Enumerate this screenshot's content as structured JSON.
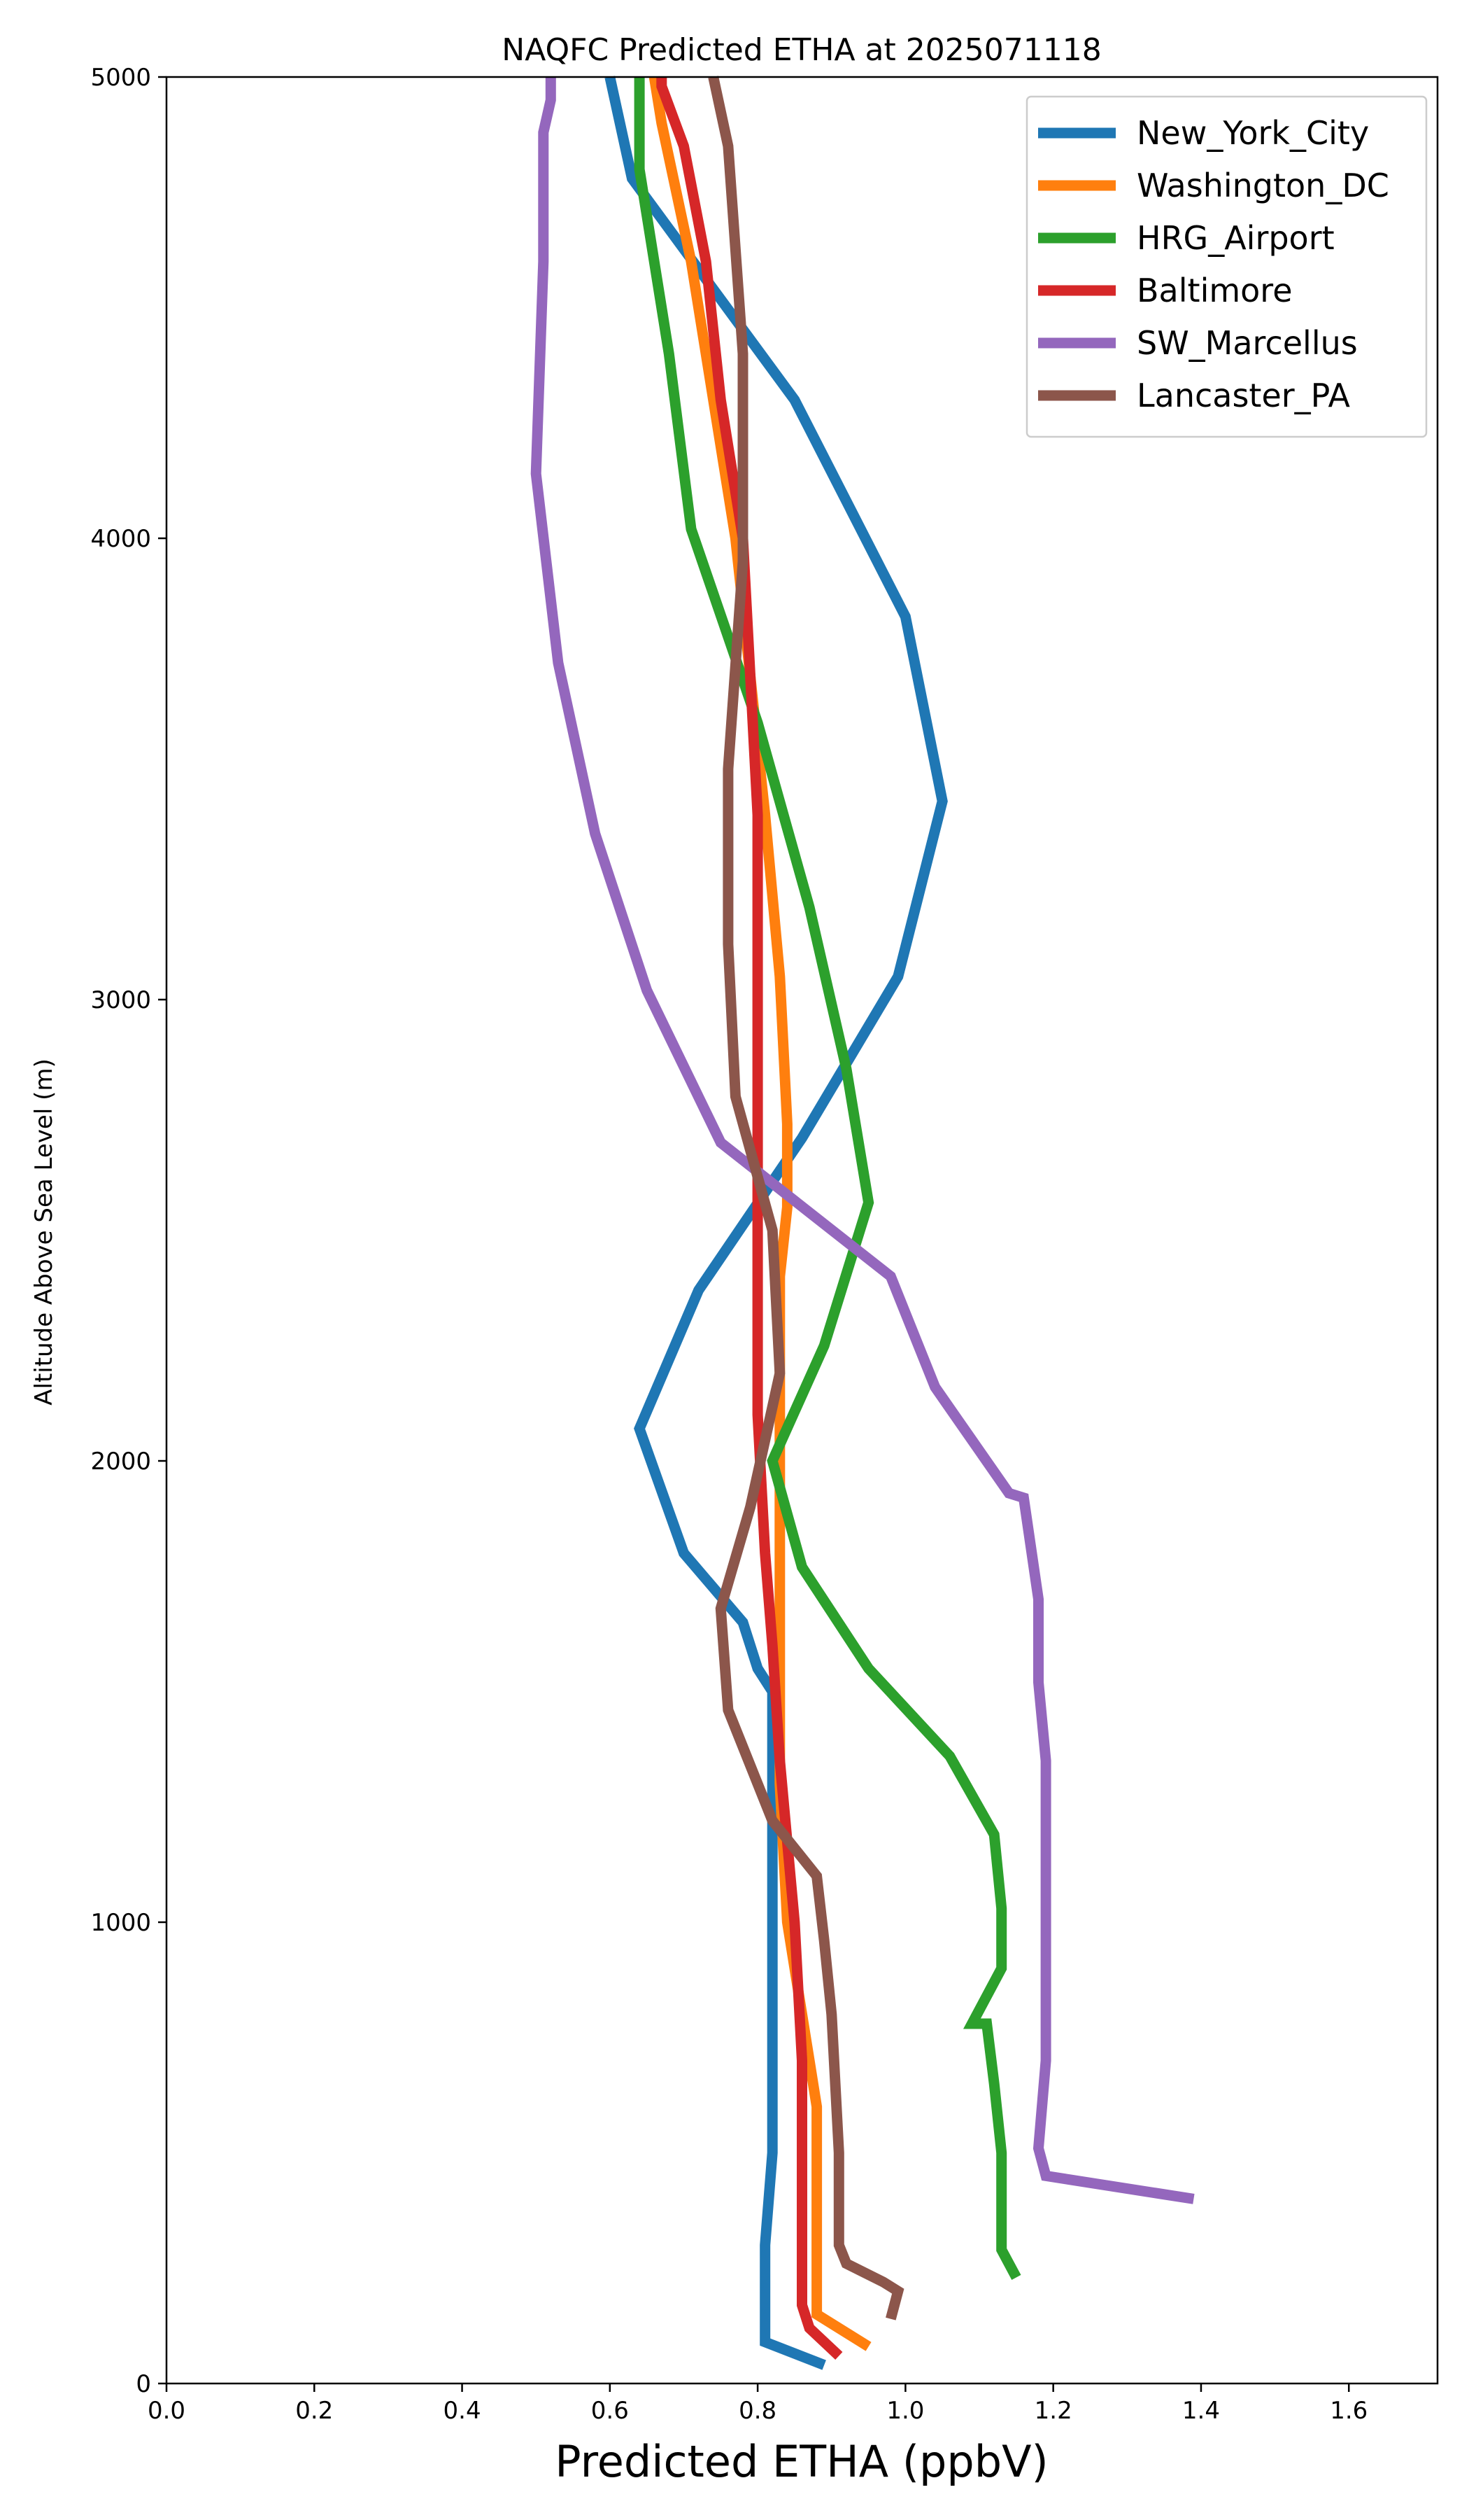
{
  "chart_data": {
    "type": "line",
    "title": "NAQFC Predicted ETHA at 2025071118",
    "xlabel": "Predicted ETHA (ppbV)",
    "ylabel": "Altitude Above Sea Level (m)",
    "xlim": [
      0.0,
      1.72
    ],
    "ylim": [
      0,
      5000
    ],
    "xticks": [
      "0.0",
      "0.2",
      "0.4",
      "0.6",
      "0.8",
      "1.0",
      "1.2",
      "1.4",
      "1.6"
    ],
    "yticks": [
      "0",
      "1000",
      "2000",
      "3000",
      "4000",
      "5000"
    ],
    "grid": false,
    "legend_position": "top-right",
    "series": [
      {
        "name": "New_York_City",
        "color": "#1f77b4",
        "x": [
          0.89,
          0.81,
          0.81,
          0.81,
          0.82,
          0.82,
          0.82,
          0.82,
          0.82,
          0.82,
          0.8,
          0.78,
          0.7,
          0.64,
          0.72,
          0.86,
          0.99,
          1.05,
          1.0,
          0.85,
          0.63,
          0.6
        ],
        "y": [
          40,
          90,
          190,
          300,
          500,
          700,
          1000,
          1200,
          1400,
          1500,
          1550,
          1650,
          1800,
          2070,
          2370,
          2700,
          3050,
          3430,
          3830,
          4300,
          4780,
          5000
        ]
      },
      {
        "name": "Washington_DC",
        "color": "#ff7f0e",
        "x": [
          0.95,
          0.88,
          0.88,
          0.88,
          0.88,
          0.87,
          0.84,
          0.83,
          0.83,
          0.83,
          0.83,
          0.83,
          0.84,
          0.84,
          0.83,
          0.81,
          0.79,
          0.77,
          0.74,
          0.71,
          0.67,
          0.66
        ],
        "y": [
          80,
          150,
          300,
          500,
          600,
          700,
          1000,
          1300,
          1600,
          2000,
          2200,
          2400,
          2550,
          2730,
          3050,
          3400,
          3700,
          4000,
          4300,
          4600,
          4900,
          5000
        ]
      },
      {
        "name": "HRG_Airport",
        "color": "#2ca02c",
        "x": [
          1.15,
          1.13,
          1.13,
          1.12,
          1.11,
          1.09,
          1.13,
          1.13,
          1.12,
          1.06,
          0.95,
          0.86,
          0.82,
          0.89,
          0.95,
          0.92,
          0.87,
          0.8,
          0.71,
          0.68,
          0.64,
          0.64
        ],
        "y": [
          230,
          290,
          500,
          650,
          780,
          780,
          900,
          1030,
          1190,
          1360,
          1550,
          1770,
          2000,
          2250,
          2560,
          2850,
          3200,
          3600,
          4020,
          4400,
          4800,
          5000
        ]
      },
      {
        "name": "Baltimore",
        "color": "#d62728",
        "x": [
          0.91,
          0.87,
          0.86,
          0.86,
          0.86,
          0.86,
          0.85,
          0.83,
          0.82,
          0.81,
          0.8,
          0.8,
          0.8,
          0.8,
          0.8,
          0.79,
          0.78,
          0.75,
          0.73,
          0.7,
          0.67,
          0.67
        ],
        "y": [
          60,
          120,
          170,
          300,
          500,
          700,
          1000,
          1350,
          1600,
          1800,
          2100,
          2400,
          2700,
          3050,
          3400,
          3700,
          4000,
          4300,
          4600,
          4850,
          4980,
          5000
        ]
      },
      {
        "name": "SW_Marcellus",
        "color": "#9467bd",
        "x": [
          1.39,
          1.19,
          1.18,
          1.19,
          1.19,
          1.19,
          1.19,
          1.18,
          1.18,
          1.16,
          1.14,
          1.04,
          0.98,
          0.75,
          0.65,
          0.58,
          0.53,
          0.5,
          0.51,
          0.51,
          0.52,
          0.52
        ],
        "y": [
          400,
          450,
          510,
          700,
          1000,
          1200,
          1350,
          1520,
          1700,
          1920,
          1930,
          2160,
          2400,
          2690,
          3020,
          3360,
          3730,
          4140,
          4600,
          4880,
          4950,
          5000
        ]
      },
      {
        "name": "Lancaster_PA",
        "color": "#8c564b",
        "x": [
          0.98,
          0.99,
          0.97,
          0.92,
          0.91,
          0.91,
          0.9,
          0.89,
          0.88,
          0.82,
          0.76,
          0.75,
          0.79,
          0.83,
          0.82,
          0.77,
          0.76,
          0.76,
          0.78,
          0.78,
          0.76,
          0.74
        ],
        "y": [
          140,
          200,
          220,
          260,
          300,
          500,
          800,
          960,
          1100,
          1220,
          1460,
          1680,
          1900,
          2190,
          2500,
          2790,
          3120,
          3500,
          3950,
          4400,
          4850,
          5000
        ]
      }
    ]
  }
}
